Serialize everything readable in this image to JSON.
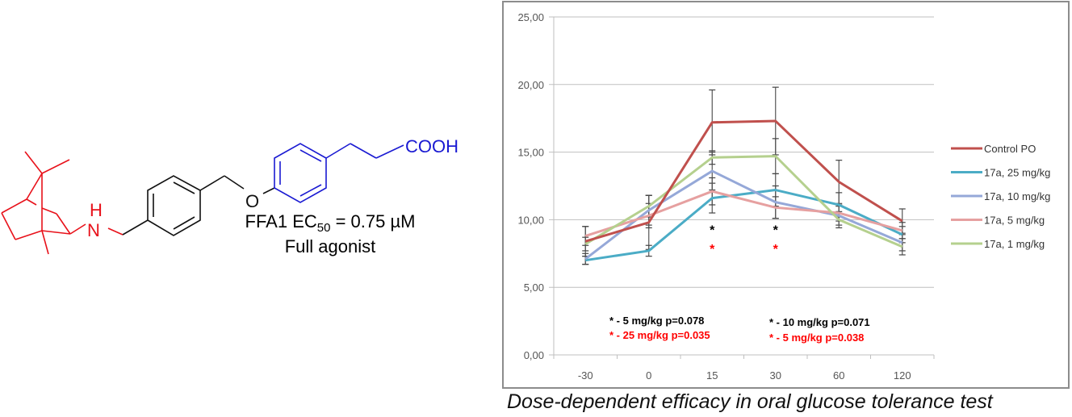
{
  "molecule": {
    "labels": {
      "N": "N",
      "H": "H",
      "O": "O",
      "acid": "COOH"
    },
    "colors": {
      "amine_part": "#e8111a",
      "linker": "#111111",
      "acid_part": "#1a1ad2"
    },
    "ec50_prefix": "FFA1 EC",
    "ec50_sub": "50",
    "ec50_value": " = 0.75 µM",
    "activity": "Full agonist"
  },
  "caption": "Dose-dependent efficacy in oral glucose tolerance test",
  "chart_data": {
    "type": "line",
    "title": "",
    "xlabel": "",
    "ylabel": "",
    "categories": [
      "-30",
      "0",
      "15",
      "30",
      "60",
      "120"
    ],
    "ylim": [
      0,
      25
    ],
    "yticks": [
      0,
      5,
      10,
      15,
      20,
      25
    ],
    "ytick_labels": [
      "0,00",
      "5,00",
      "10,00",
      "15,00",
      "20,00",
      "25,00"
    ],
    "grid": "horizontal",
    "legend_position": "right",
    "series": [
      {
        "name": "Control PO",
        "color": "#c0504d",
        "values": [
          8.4,
          9.8,
          17.2,
          17.3,
          12.8,
          9.9
        ],
        "errors": [
          1.1,
          2.0,
          2.4,
          2.5,
          1.6,
          0.9
        ]
      },
      {
        "name": "17a, 25 mg/kg",
        "color": "#4bacc6",
        "values": [
          7.0,
          7.7,
          11.6,
          12.2,
          11.1,
          8.9
        ],
        "errors": [
          0.3,
          0.4,
          1.1,
          1.2,
          0.9,
          0.6
        ]
      },
      {
        "name": "17a, 10 mg/kg",
        "color": "#95a8d8",
        "values": [
          7.1,
          10.7,
          13.6,
          11.3,
          10.3,
          8.3
        ],
        "errors": [
          0.4,
          1.1,
          1.4,
          1.2,
          0.7,
          0.6
        ]
      },
      {
        "name": "17a, 5 mg/kg",
        "color": "#e6a0a0",
        "values": [
          8.8,
          10.3,
          12.1,
          10.9,
          10.5,
          9.2
        ],
        "errors": [
          0.7,
          0.9,
          1.0,
          0.8,
          0.6,
          0.6
        ]
      },
      {
        "name": "17a, 1 mg/kg",
        "color": "#b5d08e",
        "values": [
          8.2,
          11.0,
          14.6,
          14.7,
          10.0,
          8.0
        ],
        "errors": [
          0.5,
          0.8,
          0.5,
          1.3,
          0.6,
          0.6
        ]
      }
    ],
    "significance_markers": [
      {
        "category": "15",
        "symbol": "*",
        "color": "#000000",
        "y": 9.4
      },
      {
        "category": "15",
        "symbol": "*",
        "color": "#ff0000",
        "y": 8.0
      },
      {
        "category": "30",
        "symbol": "*",
        "color": "#000000",
        "y": 9.4
      },
      {
        "category": "30",
        "symbol": "*",
        "color": "#ff0000",
        "y": 8.0
      }
    ],
    "annotations": [
      {
        "text": "* - 5 mg/kg p=0.078",
        "color": "#000000"
      },
      {
        "text": "* - 25 mg/kg p=0.035",
        "color": "#ff0000"
      },
      {
        "text": "* - 10 mg/kg p=0.071",
        "color": "#000000"
      },
      {
        "text": "* - 5 mg/kg p=0.038",
        "color": "#ff0000"
      }
    ]
  }
}
